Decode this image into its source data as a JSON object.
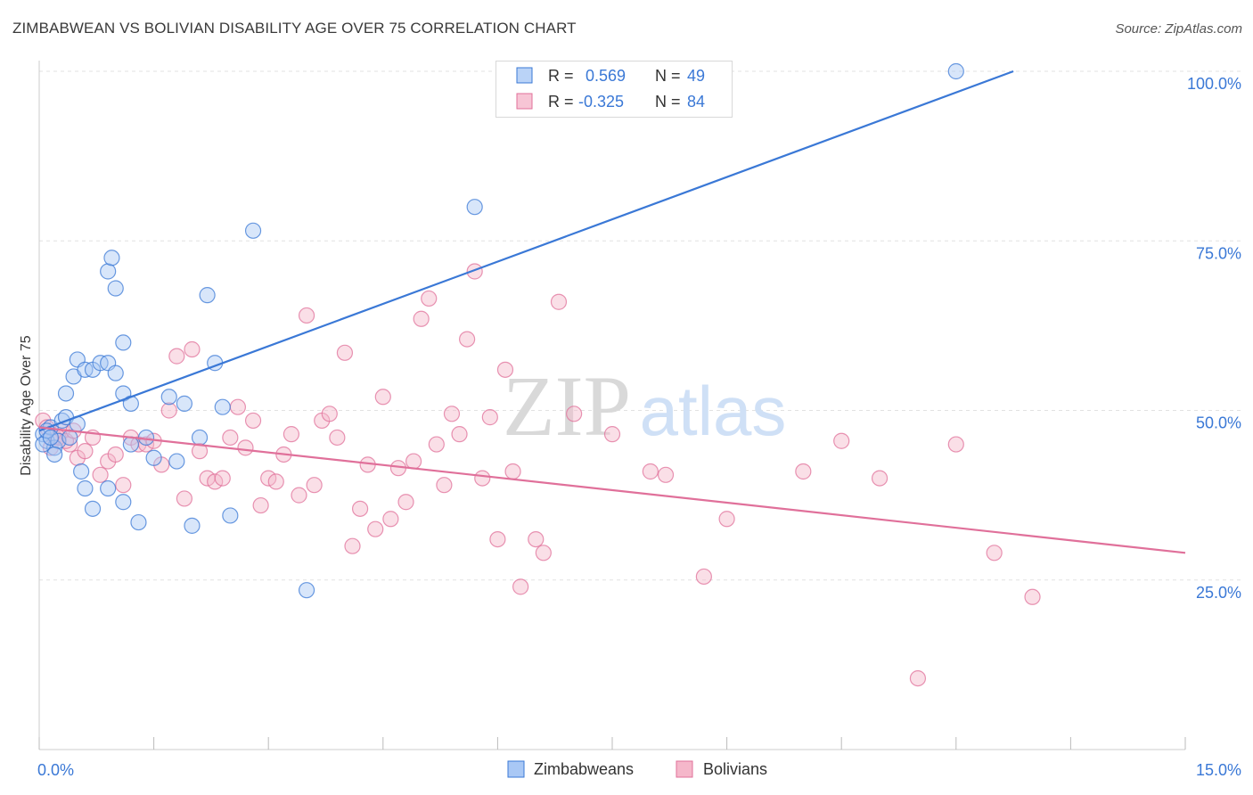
{
  "title": "ZIMBABWEAN VS BOLIVIAN DISABILITY AGE OVER 75 CORRELATION CHART",
  "source": "Source: ZipAtlas.com",
  "watermark": {
    "zip": "ZIP",
    "atlas": "atlas"
  },
  "colors": {
    "blue": "#3a78d6",
    "blue_fill": "#a9c8f5",
    "pink": "#e0709a",
    "pink_fill": "#f5b7ca",
    "axis_label": "#3a78d6",
    "grid": "#e2e2e2"
  },
  "legend": {
    "rows": [
      {
        "r_label": "R =",
        "r_value": "0.569",
        "n_label": "N =",
        "n_value": "49",
        "series": "Zimbabweans"
      },
      {
        "r_label": "R =",
        "r_value": "-0.325",
        "n_label": "N =",
        "n_value": "84",
        "series": "Bolivians"
      }
    ]
  },
  "chart_data": {
    "type": "scatter",
    "title": "ZIMBABWEAN VS BOLIVIAN DISABILITY AGE OVER 75 CORRELATION CHART",
    "xlabel": "",
    "ylabel": "Disability Age Over 75",
    "xlim": [
      0,
      15
    ],
    "ylim": [
      0,
      100
    ],
    "x_tick_labels": [
      "0.0%",
      "15.0%"
    ],
    "y_ticks": [
      25,
      50,
      75,
      100
    ],
    "y_tick_labels": [
      "25.0%",
      "50.0%",
      "75.0%",
      "100.0%"
    ],
    "grid": true,
    "legend_position": "bottom",
    "series": [
      {
        "name": "Zimbabweans",
        "trend": {
          "x0": 0.0,
          "y0": 47.0,
          "x1": 12.75,
          "y1": 100.0
        },
        "points": [
          [
            0.05,
            46.5
          ],
          [
            0.1,
            45.5
          ],
          [
            0.15,
            47.5
          ],
          [
            0.2,
            44.5
          ],
          [
            0.25,
            45.5
          ],
          [
            0.3,
            48.5
          ],
          [
            0.35,
            49
          ],
          [
            0.4,
            46
          ],
          [
            0.45,
            55
          ],
          [
            0.5,
            57.5
          ],
          [
            0.6,
            56
          ],
          [
            0.7,
            56
          ],
          [
            0.8,
            57
          ],
          [
            0.9,
            57
          ],
          [
            1.0,
            55.5
          ],
          [
            1.1,
            52.5
          ],
          [
            0.35,
            52.5
          ],
          [
            0.5,
            48
          ],
          [
            0.2,
            43.5
          ],
          [
            0.55,
            41
          ],
          [
            0.6,
            38.5
          ],
          [
            0.7,
            35.5
          ],
          [
            0.9,
            38.5
          ],
          [
            1.1,
            36.5
          ],
          [
            1.2,
            45
          ],
          [
            1.3,
            33.5
          ],
          [
            0.9,
            70.5
          ],
          [
            0.95,
            72.5
          ],
          [
            1.0,
            68
          ],
          [
            1.1,
            60
          ],
          [
            1.2,
            51
          ],
          [
            1.4,
            46
          ],
          [
            1.5,
            43
          ],
          [
            1.7,
            52
          ],
          [
            1.8,
            42.5
          ],
          [
            1.9,
            51
          ],
          [
            2.0,
            33
          ],
          [
            2.1,
            46
          ],
          [
            2.2,
            67
          ],
          [
            2.3,
            57
          ],
          [
            2.4,
            50.5
          ],
          [
            2.5,
            34.5
          ],
          [
            2.8,
            76.5
          ],
          [
            3.5,
            23.5
          ],
          [
            5.7,
            80
          ],
          [
            12.0,
            100
          ],
          [
            0.05,
            45
          ],
          [
            0.1,
            47
          ],
          [
            0.15,
            46
          ]
        ]
      },
      {
        "name": "Bolivians",
        "trend": {
          "x0": 0.0,
          "y0": 47.5,
          "x1": 15.0,
          "y1": 29.0
        },
        "points": [
          [
            0.05,
            48.5
          ],
          [
            0.1,
            47.5
          ],
          [
            0.2,
            46
          ],
          [
            0.3,
            47
          ],
          [
            0.4,
            45
          ],
          [
            0.5,
            43
          ],
          [
            0.6,
            44
          ],
          [
            0.7,
            46
          ],
          [
            0.8,
            40.5
          ],
          [
            0.9,
            42.5
          ],
          [
            1.0,
            43.5
          ],
          [
            1.1,
            39
          ],
          [
            1.2,
            46
          ],
          [
            1.3,
            45
          ],
          [
            1.4,
            45
          ],
          [
            1.5,
            45.5
          ],
          [
            1.6,
            42
          ],
          [
            1.7,
            50
          ],
          [
            1.8,
            58
          ],
          [
            1.9,
            37
          ],
          [
            2.0,
            59
          ],
          [
            2.1,
            44
          ],
          [
            2.2,
            40
          ],
          [
            2.3,
            39.5
          ],
          [
            2.4,
            40
          ],
          [
            2.5,
            46
          ],
          [
            2.6,
            50.5
          ],
          [
            2.7,
            44.5
          ],
          [
            2.8,
            48.5
          ],
          [
            2.9,
            36
          ],
          [
            3.0,
            40
          ],
          [
            3.1,
            39.5
          ],
          [
            3.2,
            43.5
          ],
          [
            3.3,
            46.5
          ],
          [
            3.4,
            37.5
          ],
          [
            3.5,
            64
          ],
          [
            3.6,
            39
          ],
          [
            3.7,
            48.5
          ],
          [
            3.8,
            49.5
          ],
          [
            3.9,
            46
          ],
          [
            4.0,
            58.5
          ],
          [
            4.1,
            30
          ],
          [
            4.2,
            35.5
          ],
          [
            4.3,
            42
          ],
          [
            4.4,
            32.5
          ],
          [
            4.5,
            52
          ],
          [
            4.6,
            34
          ],
          [
            4.7,
            41.5
          ],
          [
            4.8,
            36.5
          ],
          [
            4.9,
            42.5
          ],
          [
            5.0,
            63.5
          ],
          [
            5.1,
            66.5
          ],
          [
            5.2,
            45
          ],
          [
            5.3,
            39
          ],
          [
            5.4,
            49.5
          ],
          [
            5.5,
            46.5
          ],
          [
            5.6,
            60.5
          ],
          [
            5.7,
            70.5
          ],
          [
            5.8,
            40
          ],
          [
            5.9,
            49
          ],
          [
            6.0,
            31
          ],
          [
            6.1,
            56
          ],
          [
            6.2,
            41
          ],
          [
            6.3,
            24
          ],
          [
            6.5,
            31
          ],
          [
            6.6,
            29
          ],
          [
            6.8,
            66
          ],
          [
            7.0,
            49.5
          ],
          [
            7.5,
            46.5
          ],
          [
            8.0,
            41
          ],
          [
            8.2,
            40.5
          ],
          [
            8.7,
            25.5
          ],
          [
            9.0,
            34
          ],
          [
            10.0,
            41
          ],
          [
            10.5,
            45.5
          ],
          [
            11.0,
            40
          ],
          [
            11.5,
            10.5
          ],
          [
            12.0,
            45
          ],
          [
            12.5,
            29
          ],
          [
            13.0,
            22.5
          ],
          [
            0.15,
            44.5
          ],
          [
            0.25,
            46
          ],
          [
            0.35,
            45.5
          ],
          [
            0.45,
            47
          ]
        ]
      }
    ]
  }
}
